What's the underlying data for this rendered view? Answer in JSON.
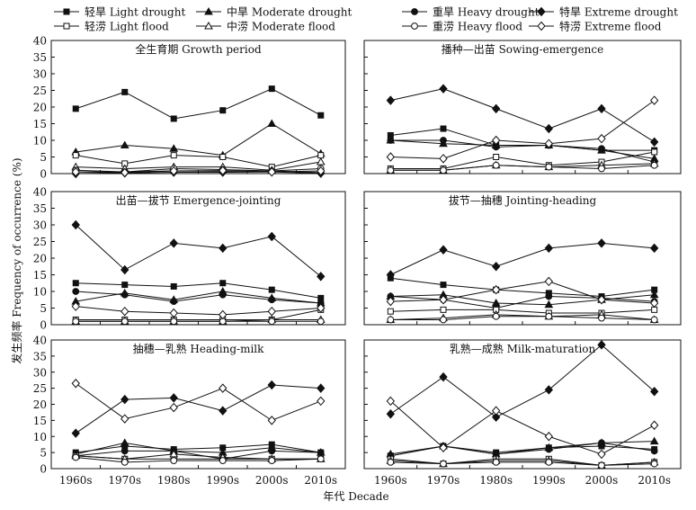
{
  "figure": {
    "y_axis_label": "发生频率 Frequency of occurrence (%)",
    "x_axis_label": "年代 Decade"
  },
  "legend": [
    {
      "label": "轻旱 Light drought",
      "marker": "square-filled"
    },
    {
      "label": "中旱 Moderate drought",
      "marker": "triangle-filled"
    },
    {
      "label": "重旱 Heavy drought",
      "marker": "circle-filled"
    },
    {
      "label": "特旱 Extreme drought",
      "marker": "diamond-filled"
    },
    {
      "label": "轻涝 Light flood",
      "marker": "square-open"
    },
    {
      "label": "中涝 Moderate flood",
      "marker": "triangle-open"
    },
    {
      "label": "重涝 Heavy flood",
      "marker": "circle-open"
    },
    {
      "label": "特涝 Extreme flood",
      "marker": "diamond-open"
    }
  ],
  "chart_data": [
    {
      "type": "line",
      "title": "全生育期 Growth period",
      "categories": [
        "1960s",
        "1970s",
        "1980s",
        "1990s",
        "2000s",
        "2010s"
      ],
      "ylim": [
        0,
        40
      ],
      "yticks": [
        0,
        5,
        10,
        15,
        20,
        25,
        30,
        35,
        40
      ],
      "series": [
        {
          "name": "轻旱 Light drought",
          "marker": "square-filled",
          "values": [
            19.5,
            24.5,
            16.5,
            19,
            25.5,
            17.5
          ]
        },
        {
          "name": "中旱 Moderate drought",
          "marker": "triangle-filled",
          "values": [
            6.5,
            8.5,
            7.5,
            5.5,
            15,
            6
          ]
        },
        {
          "name": "重旱 Heavy drought",
          "marker": "circle-filled",
          "values": [
            0.5,
            0.5,
            0.8,
            0.7,
            0.8,
            0.3
          ]
        },
        {
          "name": "特旱 Extreme drought",
          "marker": "diamond-filled",
          "values": [
            0,
            0.2,
            0.4,
            0.4,
            0.5,
            0.1
          ]
        },
        {
          "name": "轻涝 Light flood",
          "marker": "square-open",
          "values": [
            5.5,
            3,
            5.5,
            5,
            2,
            5.5
          ]
        },
        {
          "name": "中涝 Moderate flood",
          "marker": "triangle-open",
          "values": [
            2,
            1.5,
            2,
            2,
            1,
            3.5
          ]
        },
        {
          "name": "重涝 Heavy flood",
          "marker": "circle-open",
          "values": [
            1,
            0.5,
            1.5,
            1.2,
            0.8,
            1.5
          ]
        },
        {
          "name": "特涝 Extreme flood",
          "marker": "diamond-open",
          "values": [
            0.5,
            0.3,
            0.8,
            0.9,
            0.5,
            0.8
          ]
        }
      ]
    },
    {
      "type": "line",
      "title": "播种—出苗 Sowing-emergence",
      "categories": [
        "1960s",
        "1970s",
        "1980s",
        "1990s",
        "2000s",
        "2010s"
      ],
      "ylim": [
        0,
        40
      ],
      "yticks": [
        0,
        5,
        10,
        15,
        20,
        25,
        30,
        35,
        40
      ],
      "series": [
        {
          "name": "轻旱 Light drought",
          "marker": "square-filled",
          "values": [
            11.5,
            13.5,
            8.5,
            8.5,
            7,
            7
          ]
        },
        {
          "name": "中旱 Moderate drought",
          "marker": "triangle-filled",
          "values": [
            10,
            9,
            8.5,
            8.5,
            7,
            4.5
          ]
        },
        {
          "name": "重旱 Heavy drought",
          "marker": "circle-filled",
          "values": [
            10,
            10,
            8,
            8.5,
            7.5,
            3.5
          ]
        },
        {
          "name": "特旱 Extreme drought",
          "marker": "diamond-filled",
          "values": [
            22,
            25.5,
            19.5,
            13.5,
            19.5,
            9.5
          ]
        },
        {
          "name": "轻涝 Light flood",
          "marker": "square-open",
          "values": [
            1.5,
            1.5,
            5,
            2.5,
            3.5,
            6.5
          ]
        },
        {
          "name": "中涝 Moderate flood",
          "marker": "triangle-open",
          "values": [
            1,
            1,
            2.5,
            2,
            2.5,
            3
          ]
        },
        {
          "name": "重涝 Heavy flood",
          "marker": "circle-open",
          "values": [
            1,
            1,
            2.5,
            2,
            1.5,
            2.5
          ]
        },
        {
          "name": "特涝 Extreme flood",
          "marker": "diamond-open",
          "values": [
            5,
            4.5,
            10,
            9,
            10.5,
            22
          ]
        }
      ]
    },
    {
      "type": "line",
      "title": "出苗—拔节 Emergence-jointing",
      "categories": [
        "1960s",
        "1970s",
        "1980s",
        "1990s",
        "2000s",
        "2010s"
      ],
      "ylim": [
        0,
        40
      ],
      "yticks": [
        0,
        5,
        10,
        15,
        20,
        25,
        30,
        35,
        40
      ],
      "series": [
        {
          "name": "轻旱 Light drought",
          "marker": "square-filled",
          "values": [
            12.5,
            12,
            11.5,
            12.5,
            10.5,
            8
          ]
        },
        {
          "name": "中旱 Moderate drought",
          "marker": "triangle-filled",
          "values": [
            7,
            9.5,
            7.5,
            10,
            8,
            6.5
          ]
        },
        {
          "name": "重旱 Heavy drought",
          "marker": "circle-filled",
          "values": [
            10,
            9,
            7,
            9,
            7.5,
            6.5
          ]
        },
        {
          "name": "特旱 Extreme drought",
          "marker": "diamond-filled",
          "values": [
            30,
            16.5,
            24.5,
            23,
            26.5,
            14.5
          ]
        },
        {
          "name": "轻涝 Light flood",
          "marker": "square-open",
          "values": [
            1.5,
            1.5,
            1.5,
            1.5,
            1.5,
            4.5
          ]
        },
        {
          "name": "中涝 Moderate flood",
          "marker": "triangle-open",
          "values": [
            1,
            1,
            1,
            1,
            1.5,
            1.5
          ]
        },
        {
          "name": "重涝 Heavy flood",
          "marker": "circle-open",
          "values": [
            1,
            1,
            1,
            1,
            1,
            1
          ]
        },
        {
          "name": "特涝 Extreme flood",
          "marker": "diamond-open",
          "values": [
            5.5,
            4,
            3.5,
            3,
            4,
            5
          ]
        }
      ]
    },
    {
      "type": "line",
      "title": "拔节—抽穗 Jointing-heading",
      "categories": [
        "1960s",
        "1970s",
        "1980s",
        "1990s",
        "2000s",
        "2010s"
      ],
      "ylim": [
        0,
        40
      ],
      "yticks": [
        0,
        5,
        10,
        15,
        20,
        25,
        30,
        35,
        40
      ],
      "series": [
        {
          "name": "轻旱 Light drought",
          "marker": "square-filled",
          "values": [
            14,
            12,
            10.5,
            9.5,
            8.5,
            10.5
          ]
        },
        {
          "name": "中旱 Moderate drought",
          "marker": "triangle-filled",
          "values": [
            8.5,
            9,
            6.5,
            6,
            7.5,
            9
          ]
        },
        {
          "name": "重旱 Heavy drought",
          "marker": "circle-filled",
          "values": [
            8.5,
            7.5,
            5,
            8.5,
            8,
            7
          ]
        },
        {
          "name": "特旱 Extreme drought",
          "marker": "diamond-filled",
          "values": [
            15,
            22.5,
            17.5,
            23,
            24.5,
            23
          ]
        },
        {
          "name": "轻涝 Light flood",
          "marker": "square-open",
          "values": [
            4,
            4.5,
            4.5,
            3.5,
            3.5,
            4.5
          ]
        },
        {
          "name": "中涝 Moderate flood",
          "marker": "triangle-open",
          "values": [
            1.5,
            2,
            3,
            2.5,
            3,
            1.5
          ]
        },
        {
          "name": "重涝 Heavy flood",
          "marker": "circle-open",
          "values": [
            1.5,
            1.5,
            2.5,
            2.5,
            2,
            1.5
          ]
        },
        {
          "name": "特涝 Extreme flood",
          "marker": "diamond-open",
          "values": [
            7,
            7.5,
            10.5,
            13,
            7.5,
            6.5
          ]
        }
      ]
    },
    {
      "type": "line",
      "title": "抽穗—乳熟 Heading-milk",
      "categories": [
        "1960s",
        "1970s",
        "1980s",
        "1990s",
        "2000s",
        "2010s"
      ],
      "ylim": [
        0,
        40
      ],
      "yticks": [
        0,
        5,
        10,
        15,
        20,
        25,
        30,
        35,
        40
      ],
      "series": [
        {
          "name": "轻旱 Light drought",
          "marker": "square-filled",
          "values": [
            5,
            7,
            6,
            6.5,
            7.5,
            5
          ]
        },
        {
          "name": "中旱 Moderate drought",
          "marker": "triangle-filled",
          "values": [
            4.5,
            8,
            5.5,
            5,
            6.5,
            5
          ]
        },
        {
          "name": "重旱 Heavy drought",
          "marker": "circle-filled",
          "values": [
            4,
            5.5,
            5.5,
            3,
            5.5,
            5
          ]
        },
        {
          "name": "特旱 Extreme drought",
          "marker": "diamond-filled",
          "values": [
            11,
            21.5,
            22,
            18,
            26,
            25
          ]
        },
        {
          "name": "轻涝 Light flood",
          "marker": "square-open",
          "values": [
            4,
            3,
            3,
            3,
            3,
            3
          ]
        },
        {
          "name": "中涝 Moderate flood",
          "marker": "triangle-open",
          "values": [
            4,
            3,
            4.5,
            3.5,
            3,
            3
          ]
        },
        {
          "name": "重涝 Heavy flood",
          "marker": "circle-open",
          "values": [
            3.5,
            2,
            2.5,
            2.5,
            2.5,
            3
          ]
        },
        {
          "name": "特涝 Extreme flood",
          "marker": "diamond-open",
          "values": [
            26.5,
            15.5,
            19,
            25,
            15,
            21
          ]
        }
      ]
    },
    {
      "type": "line",
      "title": "乳熟—成熟 Milk-maturation",
      "categories": [
        "1960s",
        "1970s",
        "1980s",
        "1990s",
        "2000s",
        "2010s"
      ],
      "ylim": [
        0,
        40
      ],
      "yticks": [
        0,
        5,
        10,
        15,
        20,
        25,
        30,
        35,
        40
      ],
      "series": [
        {
          "name": "轻旱 Light drought",
          "marker": "square-filled",
          "values": [
            4,
            7,
            5,
            6.5,
            7,
            6
          ]
        },
        {
          "name": "中旱 Moderate drought",
          "marker": "triangle-filled",
          "values": [
            4.5,
            7,
            4.5,
            6.5,
            8,
            8.5
          ]
        },
        {
          "name": "重旱 Heavy drought",
          "marker": "circle-filled",
          "values": [
            4,
            7,
            4.5,
            6,
            8,
            5.5
          ]
        },
        {
          "name": "特旱 Extreme drought",
          "marker": "diamond-filled",
          "values": [
            17,
            28.5,
            16,
            24.5,
            38.5,
            24
          ]
        },
        {
          "name": "轻涝 Light flood",
          "marker": "square-open",
          "values": [
            3,
            1.5,
            3,
            3,
            1,
            2
          ]
        },
        {
          "name": "中涝 Moderate flood",
          "marker": "triangle-open",
          "values": [
            2.5,
            1.5,
            2.5,
            2.5,
            1,
            2
          ]
        },
        {
          "name": "重涝 Heavy flood",
          "marker": "circle-open",
          "values": [
            2,
            1.5,
            2,
            2,
            1,
            1.5
          ]
        },
        {
          "name": "特涝 Extreme flood",
          "marker": "diamond-open",
          "values": [
            21,
            6.5,
            18,
            10,
            4.5,
            13.5
          ]
        }
      ]
    }
  ]
}
